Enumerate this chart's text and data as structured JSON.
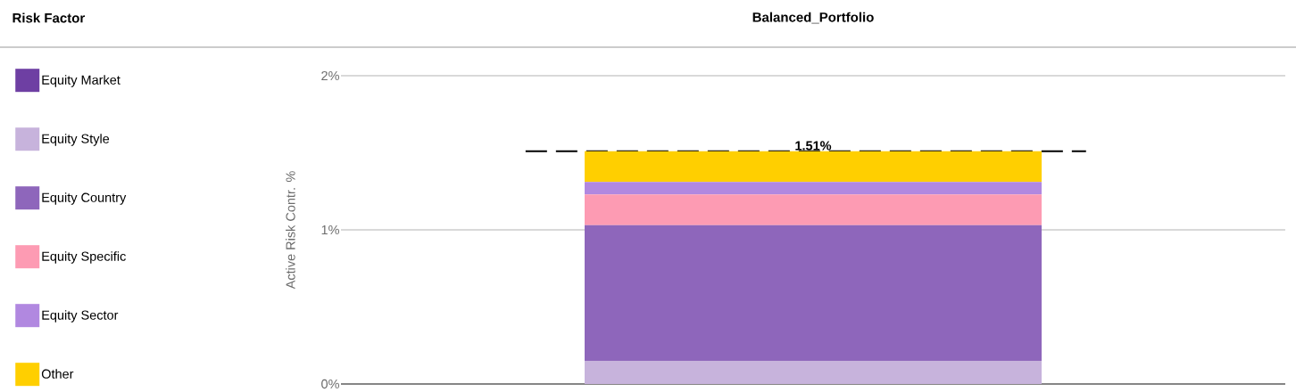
{
  "chart_data": {
    "type": "bar",
    "stacked": true,
    "title": "Balanced_Portfolio",
    "ylabel": "Active Risk Contr. %",
    "legend_title": "Risk Factor",
    "categories": [
      null
    ],
    "series": [
      {
        "name": "Equity Market",
        "color": "#6e3fa3",
        "values": [
          0
        ]
      },
      {
        "name": "Equity Style",
        "color": "#c7b3dc",
        "values": [
          0.15
        ]
      },
      {
        "name": "Equity Country",
        "color": "#8e66bb",
        "values": [
          0.88
        ]
      },
      {
        "name": "Equity Specific",
        "color": "#fd9bb3",
        "values": [
          0.2
        ]
      },
      {
        "name": "Equity Sector",
        "color": "#b188e0",
        "values": [
          0.08
        ]
      },
      {
        "name": "Other",
        "color": "#ffcf00",
        "values": [
          0.2
        ]
      }
    ],
    "ylim": [
      0,
      2
    ],
    "yticks": [
      {
        "value": 0,
        "label": "0%"
      },
      {
        "value": 1,
        "label": "1%"
      },
      {
        "value": 2,
        "label": "2%"
      }
    ],
    "grid": "y",
    "legend": "left",
    "ref_lines": [
      {
        "axis": "y",
        "value": 1.51,
        "label": "1.51%",
        "color": "#000000",
        "line_style": "dashed"
      }
    ]
  }
}
